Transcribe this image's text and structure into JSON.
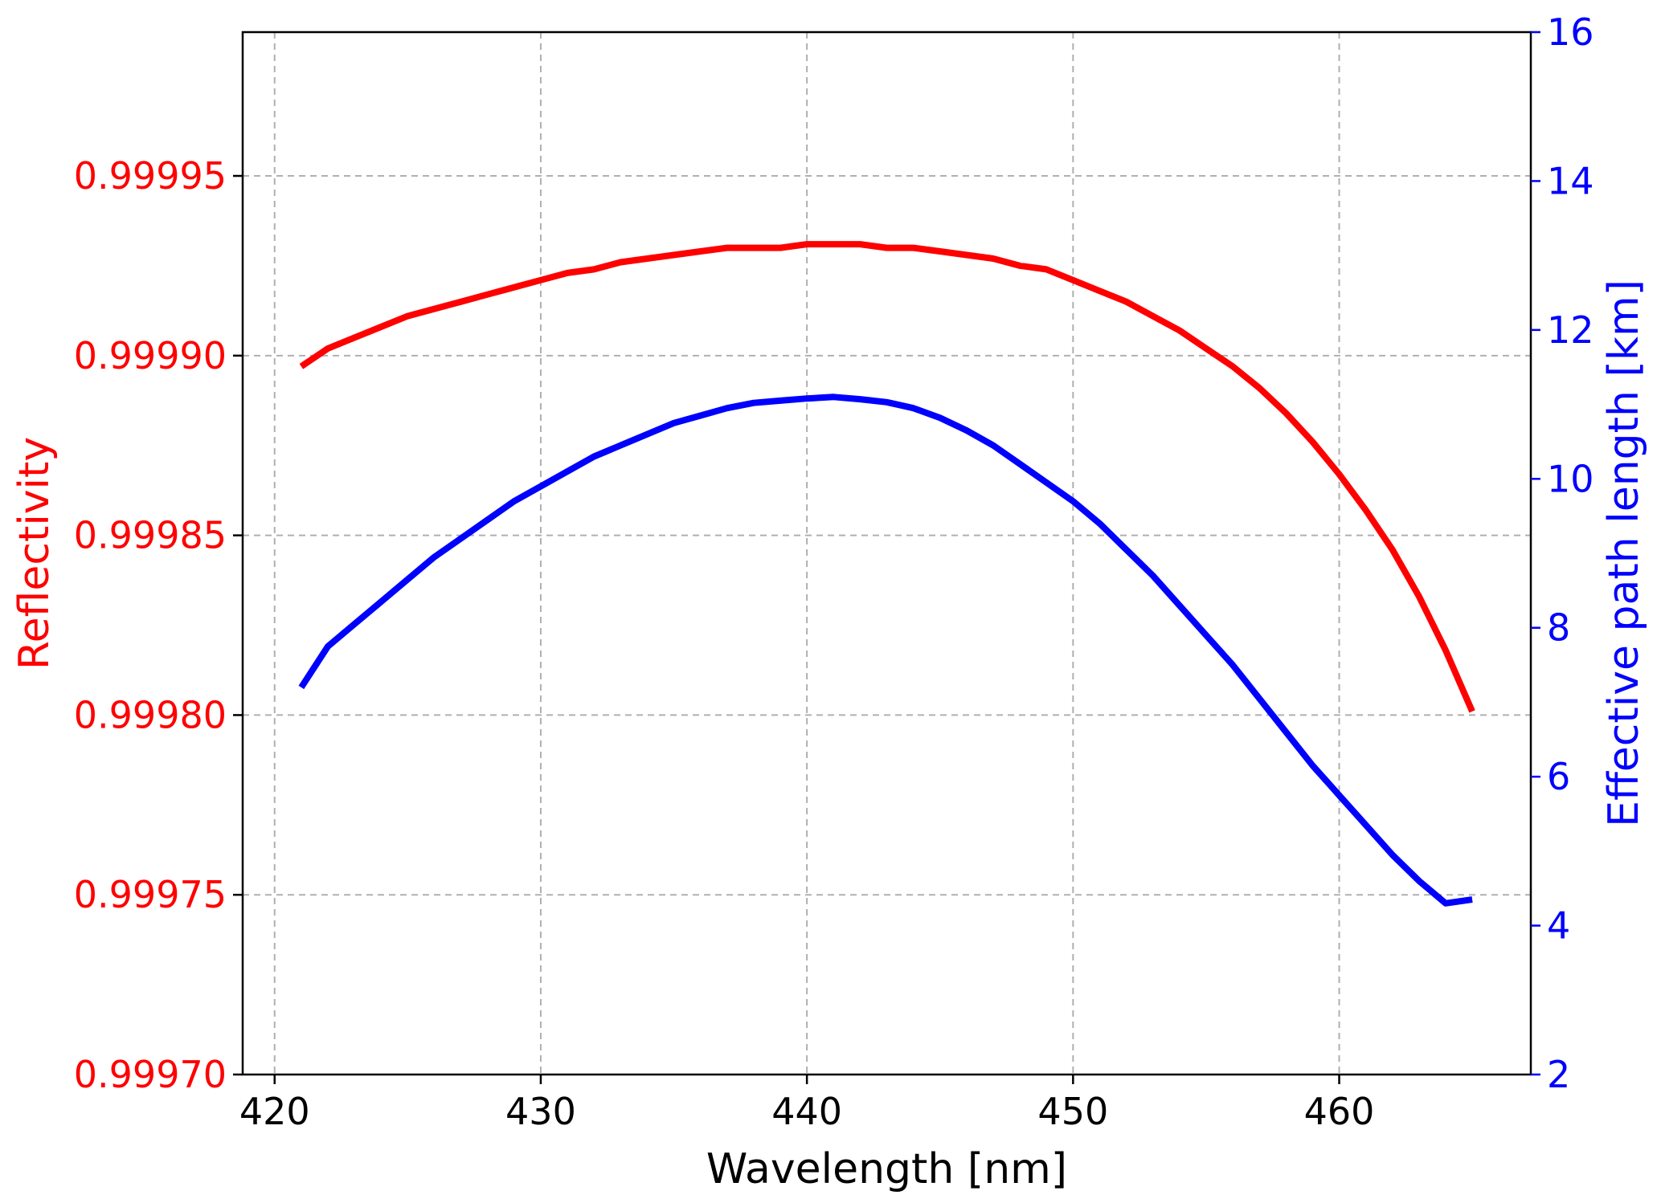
{
  "chart_data": {
    "type": "line",
    "xlabel": "Wavelength [nm]",
    "ylabel_left": "Reflectivity",
    "ylabel_right": "Effective path length [km]",
    "xlim": [
      418.8,
      467.2
    ],
    "ylim_left": [
      0.9997,
      0.99999
    ],
    "ylim_right": [
      2,
      16
    ],
    "x_ticks": [
      {
        "value": 420,
        "label": "420"
      },
      {
        "value": 430,
        "label": "430"
      },
      {
        "value": 440,
        "label": "440"
      },
      {
        "value": 450,
        "label": "450"
      },
      {
        "value": 460,
        "label": "460"
      }
    ],
    "left_ticks": [
      {
        "value": 0.9997,
        "label": "0.99970"
      },
      {
        "value": 0.99975,
        "label": "0.99975"
      },
      {
        "value": 0.9998,
        "label": "0.99980"
      },
      {
        "value": 0.99985,
        "label": "0.99985"
      },
      {
        "value": 0.9999,
        "label": "0.99990"
      },
      {
        "value": 0.99995,
        "label": "0.99995"
      }
    ],
    "right_ticks": [
      {
        "value": 2,
        "label": "2"
      },
      {
        "value": 4,
        "label": "4"
      },
      {
        "value": 6,
        "label": "6"
      },
      {
        "value": 8,
        "label": "8"
      },
      {
        "value": 10,
        "label": "10"
      },
      {
        "value": 12,
        "label": "12"
      },
      {
        "value": 14,
        "label": "14"
      },
      {
        "value": 16,
        "label": "16"
      }
    ],
    "grid": true,
    "colors": {
      "reflectivity": "#ff0000",
      "path_length": "#0000ff",
      "axis": "#000000",
      "grid": "#b0b0b0"
    },
    "series": [
      {
        "axis": "left",
        "x": [
          421,
          422,
          423,
          424,
          425,
          426,
          427,
          428,
          429,
          430,
          431,
          432,
          433,
          434,
          435,
          436,
          437,
          438,
          439,
          440,
          441,
          442,
          443,
          444,
          445,
          446,
          447,
          448,
          449,
          450,
          451,
          452,
          453,
          454,
          455,
          456,
          457,
          458,
          459,
          460,
          461,
          462,
          463,
          464,
          465
        ],
        "values": [
          0.999897,
          0.999902,
          0.999905,
          0.999908,
          0.999911,
          0.999913,
          0.999915,
          0.999917,
          0.999919,
          0.999921,
          0.999923,
          0.999924,
          0.999926,
          0.999927,
          0.999928,
          0.999929,
          0.99993,
          0.99993,
          0.99993,
          0.999931,
          0.999931,
          0.999931,
          0.99993,
          0.99993,
          0.999929,
          0.999928,
          0.999927,
          0.999925,
          0.999924,
          0.999921,
          0.999918,
          0.999915,
          0.999911,
          0.999907,
          0.999902,
          0.999897,
          0.999891,
          0.999884,
          0.999876,
          0.999867,
          0.999857,
          0.999846,
          0.999833,
          0.999818,
          0.999801
        ]
      },
      {
        "axis": "right",
        "x": [
          421,
          422,
          423,
          424,
          425,
          426,
          427,
          428,
          429,
          430,
          431,
          432,
          433,
          434,
          435,
          436,
          437,
          438,
          439,
          440,
          441,
          442,
          443,
          444,
          445,
          446,
          447,
          448,
          449,
          450,
          451,
          452,
          453,
          454,
          455,
          456,
          457,
          458,
          459,
          460,
          461,
          462,
          463,
          464,
          465
        ],
        "values": [
          7.2,
          7.75,
          8.05,
          8.35,
          8.65,
          8.95,
          9.2,
          9.45,
          9.7,
          9.9,
          10.1,
          10.3,
          10.45,
          10.6,
          10.75,
          10.85,
          10.95,
          11.02,
          11.05,
          11.08,
          11.1,
          11.07,
          11.03,
          10.95,
          10.82,
          10.65,
          10.45,
          10.2,
          9.95,
          9.7,
          9.4,
          9.05,
          8.7,
          8.3,
          7.9,
          7.5,
          7.05,
          6.6,
          6.15,
          5.75,
          5.35,
          4.95,
          4.6,
          4.3,
          4.35
        ]
      }
    ]
  }
}
